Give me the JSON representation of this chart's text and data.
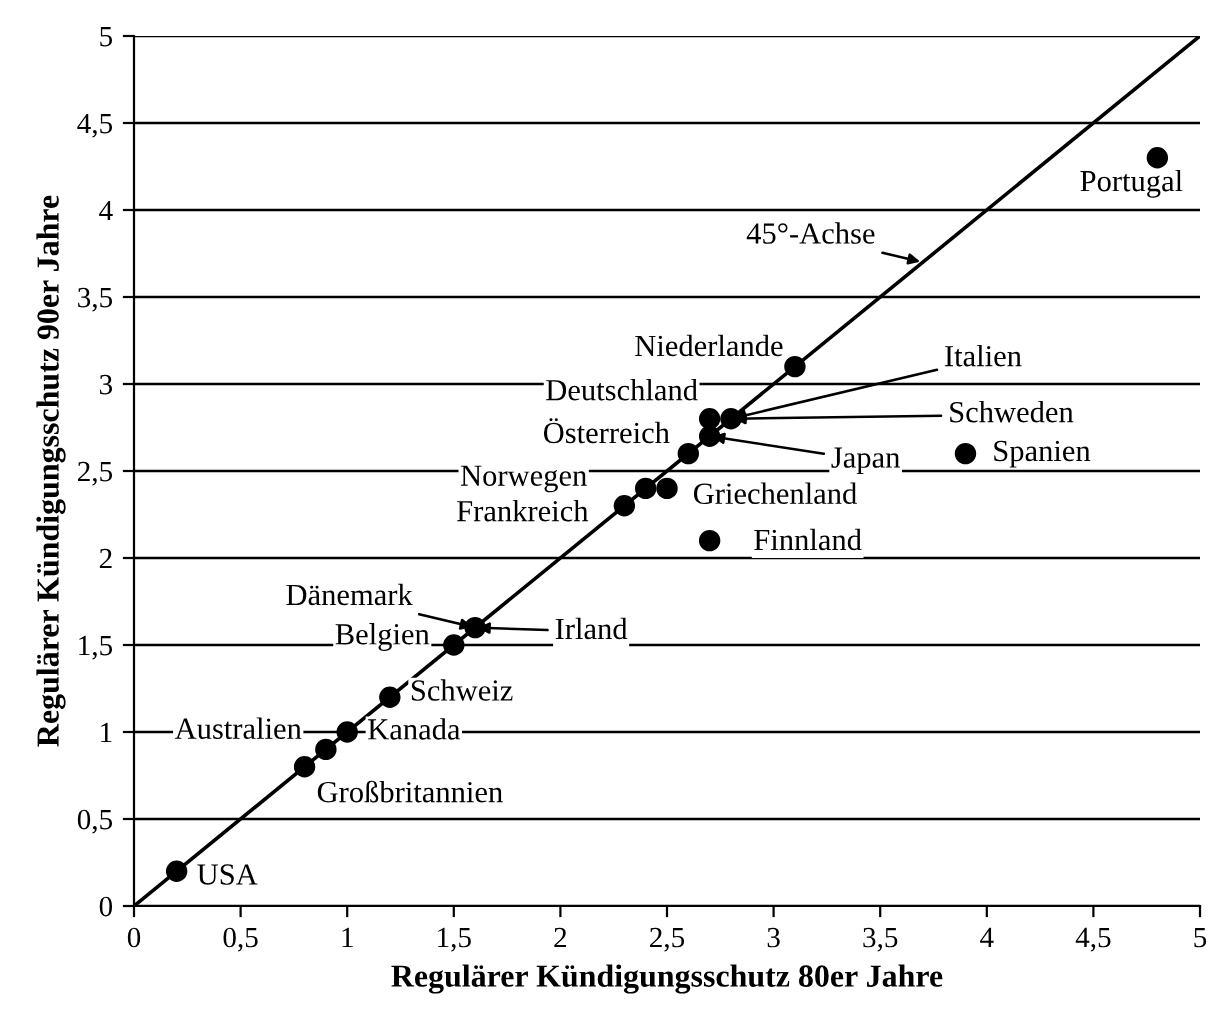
{
  "chart_data": {
    "type": "scatter",
    "xlabel": "Regulärer Kündigungsschutz 80er Jahre",
    "ylabel": "Regulärer Kündigungsschutz 90er Jahre",
    "xlim": [
      0,
      5
    ],
    "ylim": [
      0,
      5
    ],
    "xticks": [
      0,
      {
        "value": 0.5,
        "label": "0,5"
      },
      1,
      {
        "value": 1.5,
        "label": "1,5"
      },
      2,
      {
        "value": 2.5,
        "label": "2,5"
      },
      3,
      {
        "value": 3.5,
        "label": "3,5"
      },
      4,
      {
        "value": 4.5,
        "label": "4,5"
      },
      5
    ],
    "yticks": [
      0,
      {
        "value": 0.5,
        "label": "0,5"
      },
      1,
      {
        "value": 1.5,
        "label": "1,5"
      },
      2,
      {
        "value": 2.5,
        "label": "2,5"
      },
      3,
      {
        "value": 3.5,
        "label": "3,5"
      },
      4,
      {
        "value": 4.5,
        "label": "4,5"
      },
      5
    ],
    "grid": "y",
    "marker": "circle",
    "series": [
      {
        "color": "#000000",
        "x": [
          0.2,
          0.8,
          0.9,
          1.0,
          1.2,
          1.5,
          1.6,
          2.3,
          2.4,
          2.5,
          2.6,
          2.7,
          2.7,
          2.8,
          3.1,
          3.9,
          2.7,
          4.8
        ],
        "values": [
          0.2,
          0.8,
          0.9,
          1.0,
          1.2,
          1.5,
          1.6,
          2.3,
          2.4,
          2.4,
          2.6,
          2.7,
          2.8,
          2.8,
          3.1,
          2.6,
          2.1,
          4.3
        ]
      },
      {
        "type": "line",
        "color": "#000000",
        "x": [
          0,
          5
        ],
        "values": [
          0,
          5
        ],
        "marker": "none"
      }
    ],
    "annotations": [
      {
        "text": "USA",
        "x": 0.2,
        "y": 0.2
      },
      {
        "text": "Großbritannien",
        "x": 0.8,
        "y": 0.8
      },
      {
        "text": "Australien",
        "x": 0.9,
        "y": 0.9
      },
      {
        "text": "Kanada",
        "x": 1.0,
        "y": 1.0
      },
      {
        "text": "Schweiz",
        "x": 1.2,
        "y": 1.2
      },
      {
        "text": "Belgien",
        "x": 1.5,
        "y": 1.5
      },
      {
        "text": "Dänemark",
        "x": 1.6,
        "y": 1.6
      },
      {
        "text": "Irland",
        "x": 1.6,
        "y": 1.6
      },
      {
        "text": "Frankreich",
        "x": 2.3,
        "y": 2.3
      },
      {
        "text": "Norwegen",
        "x": 2.4,
        "y": 2.4
      },
      {
        "text": "Griechenland",
        "x": 2.5,
        "y": 2.4
      },
      {
        "text": "Österreich",
        "x": 2.6,
        "y": 2.6
      },
      {
        "text": "Deutschland",
        "x": 2.7,
        "y": 2.8
      },
      {
        "text": "Japan",
        "x": 2.7,
        "y": 2.7
      },
      {
        "text": "Schweden",
        "x": 2.8,
        "y": 2.8
      },
      {
        "text": "Italien",
        "x": 2.8,
        "y": 2.8
      },
      {
        "text": "Niederlande",
        "x": 3.1,
        "y": 3.1
      },
      {
        "text": "Spanien",
        "x": 3.9,
        "y": 2.6
      },
      {
        "text": "Finnland",
        "x": 2.7,
        "y": 2.1
      },
      {
        "text": "Portugal",
        "x": 4.8,
        "y": 4.3
      },
      {
        "text": "45°-Achse",
        "x": 3.7,
        "y": 3.7
      }
    ]
  }
}
